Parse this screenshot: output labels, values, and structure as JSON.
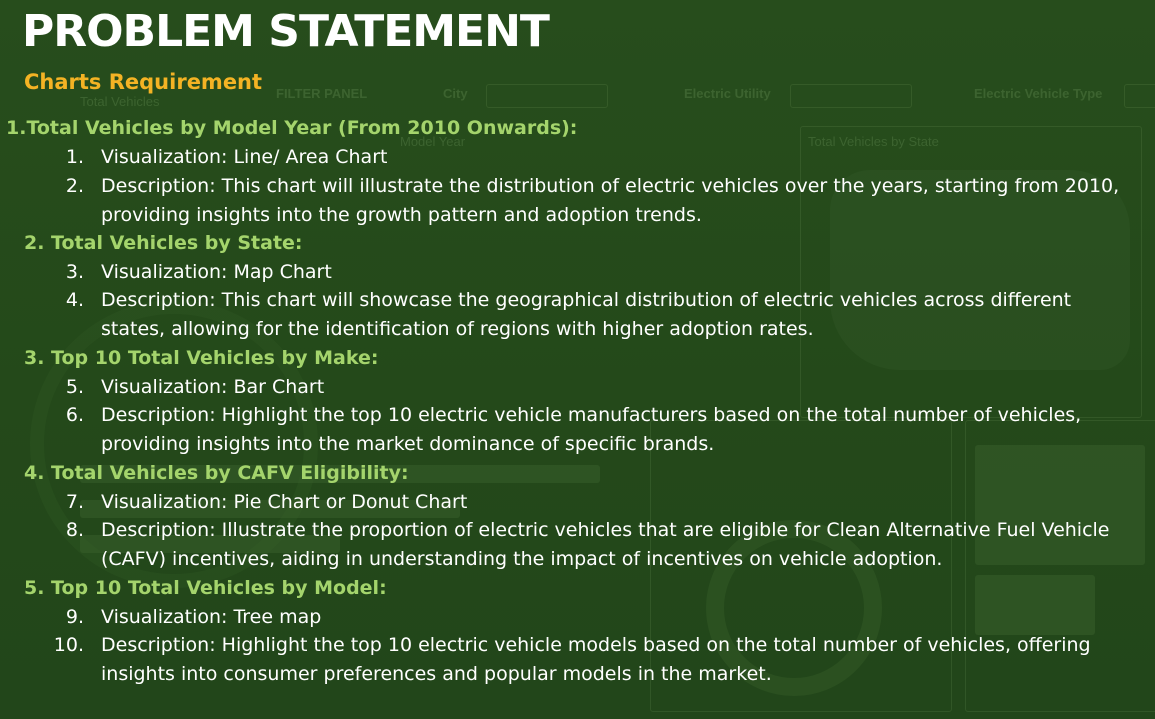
{
  "title": "PROBLEM STATEMENT",
  "subtitle": "Charts Requirement",
  "sections": [
    {
      "heading": "1.Total Vehicles by Model Year (From 2010 Onwards):",
      "items": [
        {
          "num": "1.",
          "text": "Visualization: Line/ Area Chart"
        },
        {
          "num": "2.",
          "text": "Description: This chart will illustrate the distribution of electric vehicles over the years, starting from 2010, providing insights into the growth pattern and adoption trends."
        }
      ]
    },
    {
      "heading": "2. Total Vehicles by State:",
      "items": [
        {
          "num": "3.",
          "text": "Visualization: Map Chart"
        },
        {
          "num": "4.",
          "text": "Description: This chart will showcase the geographical distribution of electric vehicles across different states, allowing for the identification of regions with higher adoption rates."
        }
      ]
    },
    {
      "heading": "3. Top 10 Total Vehicles by Make:",
      "items": [
        {
          "num": "5.",
          "text": "Visualization: Bar Chart"
        },
        {
          "num": "6.",
          "text": "Description: Highlight the top 10 electric vehicle manufacturers based on the total number of vehicles, providing insights into the market dominance of specific brands."
        }
      ]
    },
    {
      "heading": "4. Total Vehicles by CAFV Eligibility:",
      "items": [
        {
          "num": "7.",
          "text": "Visualization: Pie Chart or Donut Chart"
        },
        {
          "num": "8.",
          "text": "Description: Illustrate the proportion of electric vehicles that are eligible for Clean Alternative Fuel Vehicle (CAFV) incentives, aiding in understanding the impact of incentives on vehicle adoption."
        }
      ]
    },
    {
      "heading": "5. Top 10 Total Vehicles by Model:",
      "items": [
        {
          "num": "9.",
          "text": "Visualization: Tree map"
        },
        {
          "num": "10.",
          "text": "Description: Highlight the top 10 electric vehicle models based on the total number of vehicles, offering insights into consumer preferences and popular models in the market."
        }
      ]
    }
  ],
  "background_dashboard": {
    "filter_panel_label": "FILTER PANEL",
    "city_label": "City",
    "utility_label": "Electric Utility",
    "vehicle_type_label": "Electric Vehicle Type",
    "total_vehicles_label": "Total Vehicles",
    "by_state_label": "Total Vehicles by State",
    "model_year_label": "Model Year"
  },
  "colors": {
    "background": "#254a1a",
    "title": "#ffffff",
    "subtitle": "#f4b324",
    "section_heading": "#a4d46c",
    "body_text": "#ffffff"
  }
}
